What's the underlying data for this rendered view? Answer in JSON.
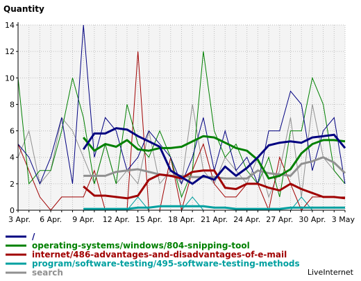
{
  "chart_data": {
    "type": "line",
    "ylabel": "Quantity",
    "xlabel": "",
    "ylim": [
      0,
      14
    ],
    "yticks": [
      0,
      2,
      4,
      6,
      8,
      10,
      12,
      14
    ],
    "x_tick_labels": [
      "3 Apr.",
      "6 Apr.",
      "9 Apr.",
      "12 Apr.",
      "15 Apr.",
      "18 Apr.",
      "21 Apr.",
      "24 Apr.",
      "27 Apr.",
      "30 Apr.",
      "3 May"
    ],
    "x_dates": [
      "Apr 3",
      "Apr 4",
      "Apr 5",
      "Apr 6",
      "Apr 7",
      "Apr 8",
      "Apr 9",
      "Apr 10",
      "Apr 11",
      "Apr 12",
      "Apr 13",
      "Apr 14",
      "Apr 15",
      "Apr 16",
      "Apr 17",
      "Apr 18",
      "Apr 19",
      "Apr 20",
      "Apr 21",
      "Apr 22",
      "Apr 23",
      "Apr 24",
      "Apr 25",
      "Apr 26",
      "Apr 27",
      "Apr 28",
      "Apr 29",
      "Apr 30",
      "May 1",
      "May 2",
      "May 3"
    ],
    "grid": true,
    "legend_position": "bottom",
    "series": [
      {
        "name": "/",
        "color": "#000080",
        "daily": [
          5,
          4,
          2,
          4,
          7,
          2,
          14,
          4,
          7,
          6,
          3,
          4,
          6,
          5,
          4,
          2,
          4,
          7,
          3,
          6,
          3,
          4,
          2,
          6,
          6,
          9,
          8,
          3,
          6,
          7,
          2
        ],
        "moving_average": [
          null,
          null,
          null,
          null,
          null,
          null,
          4.6,
          5.8,
          5.8,
          6.2,
          6.1,
          5.6,
          5.2,
          4.8,
          3.0,
          2.5,
          2.0,
          2.6,
          2.3,
          3.3,
          2.6,
          3.2,
          4.0,
          4.9,
          5.1,
          5.2,
          5.1,
          5.5,
          5.6,
          5.7,
          4.7
        ]
      },
      {
        "name": "operating-systems/windows/804-snipping-tool",
        "color": "#008000",
        "daily": [
          10,
          2,
          3,
          3,
          6,
          10,
          7,
          2,
          5,
          2,
          8,
          5,
          4,
          6,
          4,
          1,
          3,
          12,
          6,
          4,
          5,
          3,
          2,
          4,
          1,
          6,
          6,
          10,
          8,
          3,
          2
        ],
        "moving_average": [
          null,
          null,
          null,
          null,
          null,
          null,
          5.5,
          4.5,
          5.0,
          4.8,
          5.3,
          4.6,
          4.5,
          4.7,
          4.7,
          4.8,
          5.2,
          5.6,
          5.5,
          5.1,
          4.7,
          4.5,
          3.8,
          2.4,
          2.6,
          3.1,
          4.3,
          5.0,
          5.3,
          5.3,
          5.2
        ]
      },
      {
        "name": "internet/486-advantages-and-disadvantages-of-e-mail",
        "color": "#a00000",
        "daily": [
          5,
          3,
          1,
          0,
          1,
          1,
          1,
          3,
          0,
          0,
          0,
          12,
          0,
          0,
          4,
          0,
          3,
          5,
          2,
          1,
          1,
          2,
          2,
          0,
          4,
          2,
          0,
          1,
          1,
          1,
          1
        ],
        "moving_average": [
          null,
          null,
          null,
          null,
          null,
          null,
          1.8,
          1.1,
          1.1,
          1.0,
          0.9,
          1.1,
          2.3,
          2.7,
          2.6,
          2.4,
          2.9,
          3.0,
          3.0,
          1.7,
          1.6,
          2.0,
          2.0,
          1.7,
          1.5,
          2.0,
          1.6,
          1.3,
          1.0,
          1.0,
          0.9
        ]
      },
      {
        "name": "program/software-testing/495-software-testing-methods",
        "color": "#00a0a0",
        "daily": [
          0,
          0,
          0,
          0,
          0,
          0,
          0,
          0,
          0,
          0,
          0,
          1,
          0,
          0,
          0,
          0,
          1,
          0,
          0,
          0,
          0,
          0,
          0,
          0,
          0,
          0,
          1,
          0,
          0,
          0,
          0
        ],
        "moving_average": [
          null,
          null,
          null,
          null,
          null,
          null,
          0.1,
          0.1,
          0.1,
          0.1,
          0.1,
          0.2,
          0.2,
          0.3,
          0.3,
          0.3,
          0.3,
          0.3,
          0.2,
          0.2,
          0.1,
          0.1,
          0.1,
          0.1,
          0.1,
          0.2,
          0.2,
          0.2,
          0.2,
          0.2,
          0.2
        ]
      },
      {
        "name": "search",
        "color": "#909090",
        "daily": [
          4,
          6,
          2,
          3,
          7,
          6,
          4,
          2,
          5,
          2,
          3,
          2,
          6,
          2,
          3,
          2,
          8,
          3,
          2,
          4,
          3,
          2,
          4,
          1,
          3,
          7,
          1,
          8,
          4,
          3,
          2
        ],
        "moving_average": [
          null,
          null,
          null,
          null,
          null,
          null,
          2.6,
          2.6,
          2.6,
          2.9,
          3.0,
          3.1,
          2.9,
          2.7,
          2.6,
          2.6,
          2.5,
          2.5,
          2.5,
          2.4,
          2.4,
          2.4,
          3.0,
          2.8,
          2.7,
          2.6,
          3.5,
          3.7,
          4.0,
          3.6,
          2.8
        ]
      }
    ]
  },
  "watermark": "LiveInternet"
}
